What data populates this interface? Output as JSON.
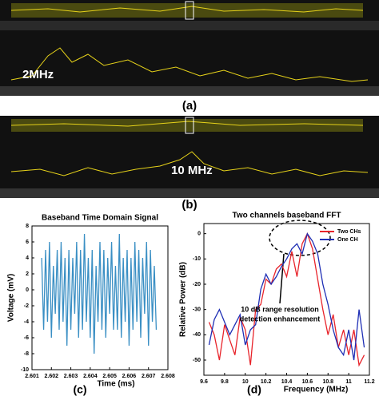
{
  "panels": {
    "a": {
      "label": "(a)",
      "annotation": "2MHz"
    },
    "b": {
      "label": "(b)",
      "annotation": "10 MHz"
    }
  },
  "chart_data": [
    {
      "type": "line",
      "title": "Baseband Time Domain Signal",
      "x_label": "Time (ms)",
      "y_label": "Voltage (mV)",
      "panel_label": "(c)",
      "xlim": [
        2.601,
        2.608
      ],
      "xticks": [
        2.601,
        2.602,
        2.603,
        2.604,
        2.605,
        2.606,
        2.607,
        2.608
      ],
      "ylim": [
        -10,
        8
      ],
      "yticks": [
        -10,
        -8,
        -6,
        -4,
        -2,
        0,
        2,
        4,
        6,
        8
      ],
      "grid": false,
      "series": [
        {
          "name": "Voltage",
          "color": "#3a8fc4",
          "x": [
            2.6015,
            2.6016,
            2.6017,
            2.6018,
            2.6019,
            2.602,
            2.6021,
            2.6022,
            2.6023,
            2.6024,
            2.6025,
            2.6026,
            2.6027,
            2.6028,
            2.6029,
            2.603,
            2.6031,
            2.6032,
            2.6033,
            2.6034,
            2.6035,
            2.6036,
            2.6037,
            2.6038,
            2.6039,
            2.604,
            2.6041,
            2.6042,
            2.6043,
            2.6044,
            2.6045,
            2.6046,
            2.6047,
            2.6048,
            2.6049,
            2.605,
            2.6051,
            2.6052,
            2.6053,
            2.6054,
            2.6055,
            2.6056,
            2.6057,
            2.6058,
            2.6059,
            2.606,
            2.6061,
            2.6062,
            2.6063,
            2.6064,
            2.6065,
            2.6066,
            2.6067,
            2.6068,
            2.6069,
            2.607,
            2.6071,
            2.6072,
            2.6073,
            2.6074
          ],
          "values": [
            4,
            -5,
            5,
            -4,
            6,
            -6,
            3,
            -3,
            5,
            -5,
            6,
            -4,
            4,
            -7,
            5,
            -5,
            4,
            -3,
            6,
            -6,
            5,
            -5,
            7,
            -4,
            4,
            -6,
            5,
            -8,
            3,
            -4,
            6,
            -5,
            5,
            -6,
            4,
            -3,
            6,
            -5,
            3,
            -5,
            7,
            -6,
            4,
            -4,
            5,
            -7,
            4,
            -5,
            6,
            -4,
            5,
            -6,
            4,
            -3,
            6,
            -7,
            5,
            -4,
            3,
            -5
          ]
        }
      ]
    },
    {
      "type": "line",
      "title": "Two channels baseband FFT",
      "x_label": "Frequency (MHz)",
      "y_label": "Relative Power (dB)",
      "panel_label": "(d)",
      "annotation": [
        "10 dB range resolution",
        "detection enhancement"
      ],
      "xlim": [
        9.6,
        11.2
      ],
      "xticks": [
        9.6,
        9.8,
        10,
        10.2,
        10.4,
        10.6,
        10.8,
        11,
        11.2
      ],
      "ylim": [
        -56,
        4
      ],
      "yticks": [
        0,
        -10,
        -20,
        -30,
        -40,
        -50
      ],
      "grid": false,
      "legend": "upper-right",
      "x": [
        9.65,
        9.7,
        9.75,
        9.8,
        9.85,
        9.9,
        9.95,
        10,
        10.05,
        10.1,
        10.15,
        10.2,
        10.25,
        10.3,
        10.35,
        10.4,
        10.45,
        10.5,
        10.55,
        10.6,
        10.65,
        10.7,
        10.75,
        10.8,
        10.85,
        10.9,
        10.95,
        11,
        11.05,
        11.1,
        11.15
      ],
      "series": [
        {
          "name": "Two CHs",
          "color": "#e8242b",
          "values": [
            -35,
            -40,
            -50,
            -36,
            -42,
            -48,
            -33,
            -38,
            -52,
            -30,
            -28,
            -18,
            -20,
            -14,
            -12,
            -17,
            -7,
            -17,
            -4,
            0,
            -6,
            -18,
            -30,
            -40,
            -32,
            -45,
            -38,
            -48,
            -38,
            -52,
            -48
          ]
        },
        {
          "name": "One CH",
          "color": "#1f2fb5",
          "values": [
            -44,
            -34,
            -30,
            -35,
            -40,
            -36,
            -32,
            -44,
            -38,
            -36,
            -22,
            -16,
            -20,
            -17,
            -13,
            -10,
            -6,
            -4,
            -8,
            0,
            -3,
            -8,
            -20,
            -28,
            -38,
            -45,
            -48,
            -38,
            -50,
            -30,
            -45
          ]
        }
      ]
    }
  ]
}
